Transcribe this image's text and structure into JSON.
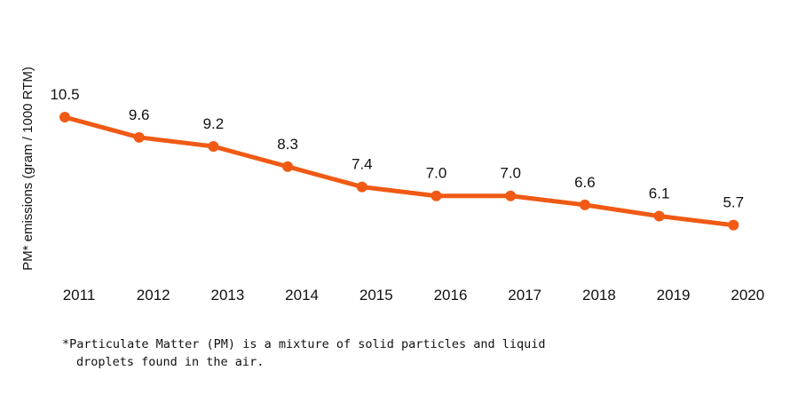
{
  "chart_data": {
    "type": "line",
    "title": "",
    "xlabel": "",
    "ylabel": "PM* emissions (gram / 1000 RTM)",
    "categories": [
      "2011",
      "2012",
      "2013",
      "2014",
      "2015",
      "2016",
      "2017",
      "2018",
      "2019",
      "2020"
    ],
    "series": [
      {
        "name": "PM emissions",
        "values": [
          10.5,
          9.6,
          9.2,
          8.3,
          7.4,
          7.0,
          7.0,
          6.6,
          6.1,
          5.7
        ],
        "labels": [
          "10.5",
          "9.6",
          "9.2",
          "8.3",
          "7.4",
          "7.0",
          "7.0",
          "6.6",
          "6.1",
          "5.7"
        ]
      }
    ],
    "ylim": [
      1.9,
      10.5
    ],
    "grid": false,
    "line_color": "#f05a14"
  },
  "footnote": {
    "line1": "*Particulate Matter (PM) is a mixture of solid particles and liquid",
    "line2": "droplets found in the air."
  }
}
